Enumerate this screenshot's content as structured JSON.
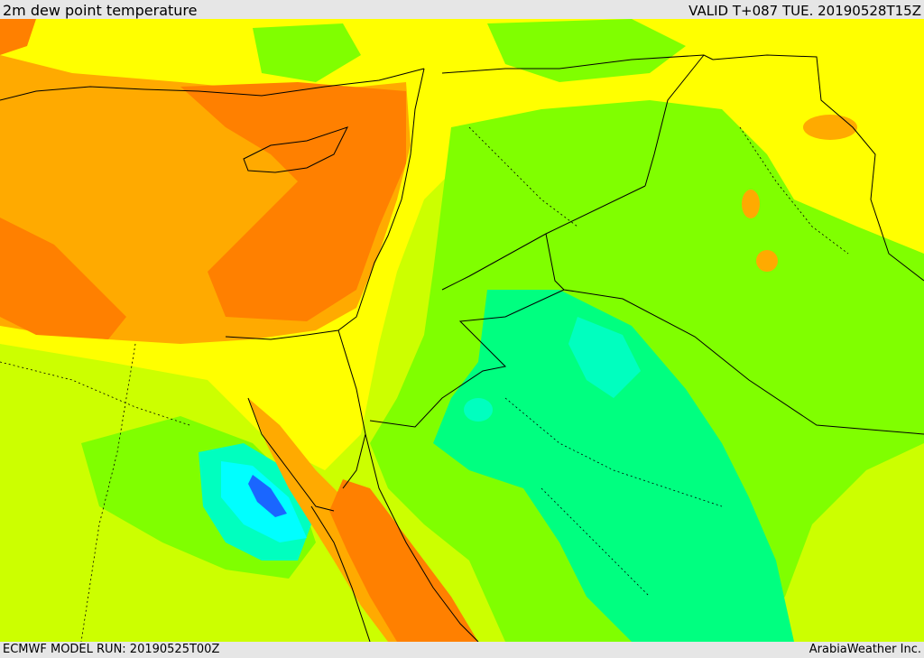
{
  "header": {
    "title": "2m dew point temperature",
    "valid": "VALID T+087 TUE. 20190528T15Z"
  },
  "footer": {
    "model_run": "ECMWF MODEL RUN: 20190525T00Z",
    "credit": "ArabiaWeather Inc."
  },
  "colors": {
    "background": "#e6e6e6",
    "orange_dark": "#ff8000",
    "orange": "#ffaa00",
    "yellow": "#ffff00",
    "yellow_green": "#ccff00",
    "green": "#80ff00",
    "spring_green": "#00ff80",
    "teal": "#00ffbf",
    "cyan": "#00ffff",
    "blue": "#1a66ff",
    "border": "#000000"
  }
}
